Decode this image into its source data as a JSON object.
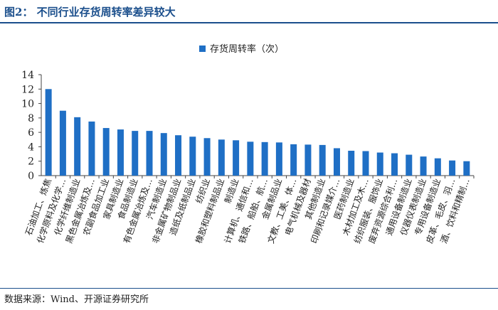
{
  "figure_title": "图2：  不同行业存货周转率差异较大",
  "source_note": "数据来源：Wind、开源证券研究所",
  "colors": {
    "bar": "#1f6fc5",
    "title": "#1b4f8c",
    "axis": "#444444",
    "text": "#222222"
  },
  "chart_data": {
    "type": "bar",
    "legend": "存货周转率（次）",
    "legend_position": "top-center",
    "ylim": [
      0,
      14
    ],
    "yticks": [
      0,
      2,
      4,
      6,
      8,
      10,
      12,
      14
    ],
    "grid": false,
    "categories": [
      "石油加工、炼焦",
      "化学原料及化学…",
      "化学纤维制造业",
      "黑色金属冶炼及…",
      "农副食品加工业",
      "家具制造业",
      "食品制造业",
      "有色金属冶炼及…",
      "汽车制造业",
      "非金属矿物制品业",
      "造纸及纸制品业",
      "纺织业",
      "橡胶和塑料制品业",
      "制造业",
      "计算机、通信和…",
      "铁路、船舶、航…",
      "金属制品业",
      "文教、工美、体…",
      "电气机械及器材",
      "其他制造业",
      "印刷和记录媒介…",
      "医药制造业",
      "木材加工及木…",
      "纺织服装、服饰业",
      "废弃资源综合利…",
      "通用设备制造业",
      "仪器仪表制造业",
      "专用设备制造业",
      "皮革、毛皮、羽…",
      "酒、饮料和精制…"
    ],
    "values": [
      12.0,
      9.0,
      8.1,
      7.5,
      6.6,
      6.4,
      6.2,
      6.2,
      5.9,
      5.6,
      5.4,
      5.2,
      5.0,
      4.9,
      4.7,
      4.65,
      4.6,
      4.35,
      4.3,
      4.25,
      3.8,
      3.45,
      3.4,
      3.2,
      3.1,
      2.9,
      2.65,
      2.4,
      2.1,
      2.0
    ]
  }
}
